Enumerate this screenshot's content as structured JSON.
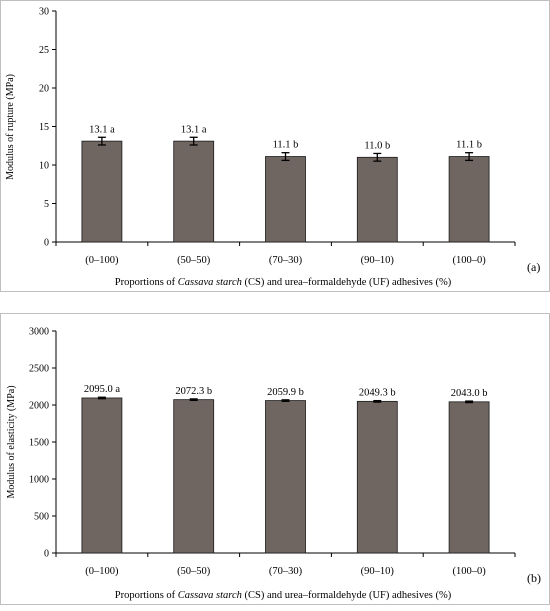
{
  "colors": {
    "bar_fill": "#6f6662",
    "bar_stroke": "#1a1a1a",
    "axis": "#000000",
    "frame": "#bfbfbf"
  },
  "chart_data": [
    {
      "type": "bar",
      "panel_label": "(a)",
      "ylabel": "Modulus of rupture  (MPa)",
      "xlabel": {
        "prefix": "Proportions of ",
        "italic": "Cassava starch",
        "suffix": " (CS) and urea–formaldehyde  (UF) adhesives (%)"
      },
      "categories": [
        "(0–100)",
        "(50–50)",
        "(70–30)",
        "(90–10)",
        "(100–0)"
      ],
      "values": [
        13.1,
        13.1,
        11.1,
        11.0,
        11.1
      ],
      "errors": [
        0.5,
        0.5,
        0.5,
        0.5,
        0.5
      ],
      "data_labels": [
        "13.1 a",
        "13.1 a",
        "11.1 b",
        "11.0 b",
        "11.1 b"
      ],
      "ylim": [
        0,
        30
      ],
      "yticks": [
        0,
        5,
        10,
        15,
        20,
        25,
        30
      ],
      "grid": false,
      "legend": "none"
    },
    {
      "type": "bar",
      "panel_label": "(b)",
      "ylabel": "Modulus of elasticity  (MPa)",
      "xlabel": {
        "prefix": "Proportions of ",
        "italic": "Cassava starch",
        "suffix": " (CS) and urea–formaldehyde  (UF) adhesives (%)"
      },
      "categories": [
        "(0–100)",
        "(50–50)",
        "(70–30)",
        "(90–10)",
        "(100–0)"
      ],
      "values": [
        2095.0,
        2072.3,
        2059.9,
        2049.3,
        2043.0
      ],
      "errors": [
        10,
        10,
        10,
        10,
        10
      ],
      "data_labels": [
        "2095.0 a",
        "2072.3 b",
        "2059.9 b",
        "2049.3 b",
        "2043.0 b"
      ],
      "ylim": [
        0,
        3000
      ],
      "yticks": [
        0,
        500,
        1000,
        1500,
        2000,
        2500,
        3000
      ],
      "grid": false,
      "legend": "none"
    }
  ]
}
